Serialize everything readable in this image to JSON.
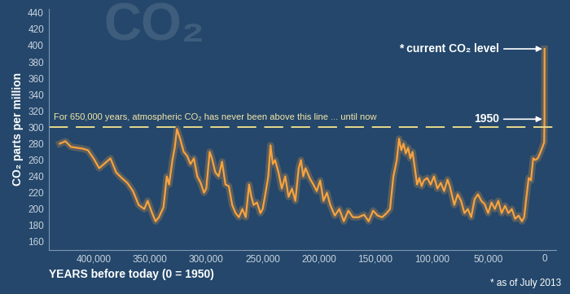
{
  "chart_data": {
    "type": "line",
    "watermark": "CO₂",
    "ylabel": "CO₂ parts per million",
    "xlabel": "YEARS before today (0 = 1950)",
    "footnote": "* as of July 2013",
    "color": "#f7a23e",
    "grid": false,
    "threshold": 300,
    "threshold_label": "For 650,000 years, atmospheric CO₂ has never been above this line ... until now",
    "annotations": [
      {
        "text": "1950",
        "x": 0,
        "y": 310
      },
      {
        "text": "* current CO₂ level",
        "x": -63,
        "y": 396
      }
    ],
    "xlim": [
      440000,
      -10000
    ],
    "xticks": [
      {
        "value": 400000,
        "label": "400,000"
      },
      {
        "value": 350000,
        "label": "350,000"
      },
      {
        "value": 300000,
        "label": "300,000"
      },
      {
        "value": 250000,
        "label": "250,000"
      },
      {
        "value": 200000,
        "label": "200,000"
      },
      {
        "value": 150000,
        "label": "150,000"
      },
      {
        "value": 100000,
        "label": "100,000"
      },
      {
        "value": 50000,
        "label": "50,000"
      },
      0
    ],
    "ylim": [
      150,
      445
    ],
    "yticks": [
      160,
      180,
      200,
      220,
      240,
      260,
      280,
      300,
      320,
      340,
      360,
      380,
      400,
      420,
      440
    ],
    "x": [
      430000,
      425000,
      420000,
      415000,
      410000,
      405000,
      400000,
      395000,
      390000,
      385000,
      380000,
      375000,
      370000,
      365000,
      360000,
      355000,
      352000,
      348000,
      345000,
      342000,
      338000,
      335000,
      333000,
      330000,
      328000,
      326000,
      323000,
      320000,
      317000,
      314000,
      311000,
      308000,
      305000,
      302000,
      300000,
      297000,
      295000,
      292000,
      289000,
      286000,
      283000,
      280000,
      277000,
      274000,
      271000,
      268000,
      265000,
      262000,
      260000,
      258000,
      255000,
      252000,
      250000,
      248000,
      245000,
      243000,
      241000,
      239000,
      236000,
      233000,
      230000,
      227000,
      224000,
      221000,
      218000,
      216000,
      214000,
      212000,
      208000,
      205000,
      202000,
      199000,
      196000,
      193000,
      190000,
      186000,
      182000,
      178000,
      174000,
      170000,
      165000,
      160000,
      156000,
      152000,
      148000,
      144000,
      140000,
      137000,
      134000,
      131000,
      129000,
      127000,
      125000,
      123000,
      121000,
      119000,
      117000,
      115000,
      113000,
      111000,
      109000,
      107000,
      104000,
      101000,
      98000,
      95000,
      92000,
      89000,
      86000,
      84000,
      80000,
      77000,
      74000,
      71000,
      68000,
      65000,
      62000,
      59000,
      56000,
      53000,
      50000,
      47000,
      44000,
      41000,
      38000,
      35000,
      32000,
      29000,
      26000,
      23000,
      20000,
      18000,
      16000,
      14000,
      12000,
      10000,
      8000,
      6000,
      4000,
      2000,
      1000,
      300,
      0,
      -63
    ],
    "values": [
      280,
      283,
      276,
      275,
      274,
      272,
      262,
      250,
      256,
      262,
      245,
      238,
      232,
      222,
      205,
      200,
      210,
      195,
      185,
      190,
      202,
      240,
      230,
      260,
      275,
      298,
      285,
      270,
      265,
      255,
      262,
      240,
      232,
      220,
      225,
      270,
      262,
      245,
      240,
      258,
      230,
      228,
      205,
      195,
      190,
      200,
      190,
      230,
      215,
      205,
      208,
      195,
      200,
      215,
      240,
      278,
      255,
      260,
      245,
      225,
      240,
      215,
      225,
      210,
      250,
      260,
      240,
      250,
      237,
      230,
      222,
      235,
      210,
      220,
      205,
      192,
      200,
      185,
      198,
      190,
      190,
      193,
      185,
      198,
      192,
      190,
      195,
      200,
      240,
      260,
      286,
      272,
      280,
      268,
      275,
      262,
      270,
      250,
      230,
      238,
      228,
      235,
      238,
      230,
      240,
      225,
      232,
      222,
      236,
      228,
      205,
      218,
      210,
      195,
      200,
      190,
      212,
      218,
      210,
      206,
      195,
      208,
      200,
      210,
      195,
      204,
      195,
      200,
      188,
      192,
      185,
      190,
      215,
      238,
      235,
      262,
      260,
      262,
      268,
      275,
      279,
      281,
      310,
      396
    ]
  }
}
